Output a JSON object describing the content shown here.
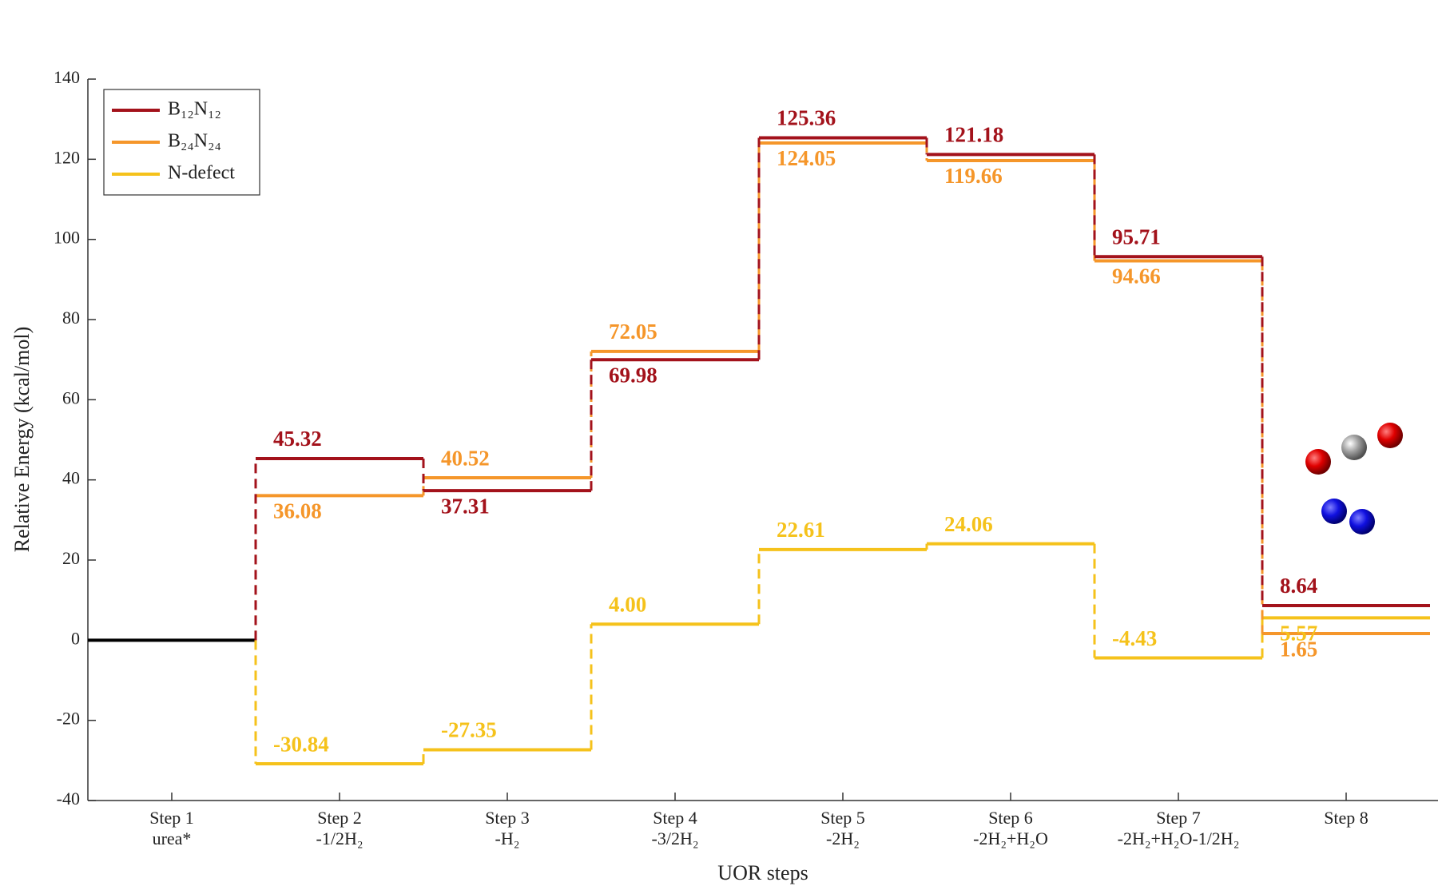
{
  "chart_data": {
    "type": "energy-profile",
    "ylabel": "Relative Energy (kcal/mol)",
    "xlabel": "UOR steps",
    "categories": [
      "Step 1",
      "Step 2",
      "Step 3",
      "Step 4",
      "Step 5",
      "Step 6",
      "Step 7",
      "Step 8"
    ],
    "category_notes": [
      "urea*",
      "-1/2H₂",
      "-H₂",
      "-3/2H₂",
      "-2H₂",
      "-2H₂+H₂O",
      "-2H₂+H₂O-1/2H₂",
      null
    ],
    "baseline_color": "#000000",
    "series": [
      {
        "name": "B₁₂N₁₂",
        "color": "#a3121b",
        "values": [
          0,
          45.32,
          37.31,
          69.98,
          125.36,
          121.18,
          95.71,
          8.64
        ],
        "value_labels": [
          null,
          "45.32",
          "37.31",
          "69.98",
          "125.36",
          "121.18",
          "95.71",
          "8.64"
        ]
      },
      {
        "name": "B₂₄N₂₄",
        "color": "#f5962a",
        "values": [
          0,
          36.08,
          40.52,
          72.05,
          124.05,
          119.66,
          94.66,
          1.65
        ],
        "value_labels": [
          null,
          "36.08",
          "40.52",
          "72.05",
          "124.05",
          "119.66",
          "94.66",
          "1.65"
        ]
      },
      {
        "name": "N-defect",
        "color": "#f5c21b",
        "values": [
          0,
          -30.84,
          -27.35,
          4.0,
          22.61,
          24.06,
          -4.43,
          5.57
        ],
        "value_labels": [
          null,
          "-30.84",
          "-27.35",
          "4.00",
          "22.61",
          "24.06",
          "-4.43",
          "5.57"
        ]
      }
    ],
    "ylim": [
      -40,
      140
    ],
    "yticks": [
      -40,
      -20,
      0,
      20,
      40,
      60,
      80,
      100,
      120,
      140
    ],
    "legend": "upper left"
  }
}
